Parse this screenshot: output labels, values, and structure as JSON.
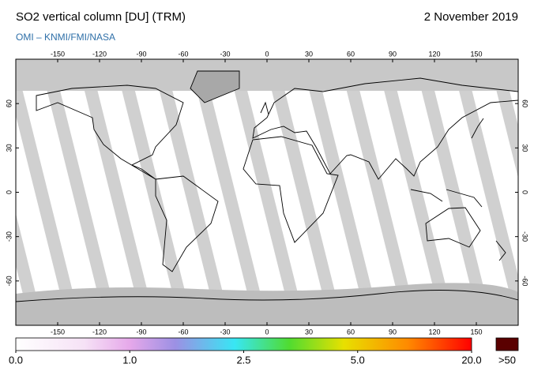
{
  "header": {
    "title": "SO2 vertical column [DU] (TRM)",
    "date": "2 November 2019",
    "subtitle": "OMI  –  KNMI/FMI/NASA"
  },
  "map": {
    "lon_ticks": [
      -150,
      -120,
      -90,
      -60,
      -30,
      0,
      30,
      60,
      90,
      120,
      150
    ],
    "lat_ticks": [
      60,
      30,
      0,
      -30,
      -60
    ]
  },
  "colorbar": {
    "labels": [
      {
        "value": 0,
        "label": "0.0"
      },
      {
        "value": 1,
        "label": "1.0"
      },
      {
        "value": 2.5,
        "label": "2.5"
      },
      {
        "value": 5,
        "label": "5.0"
      },
      {
        "value": 20,
        "label": "20.0"
      }
    ],
    "overflow_label": ">50"
  }
}
